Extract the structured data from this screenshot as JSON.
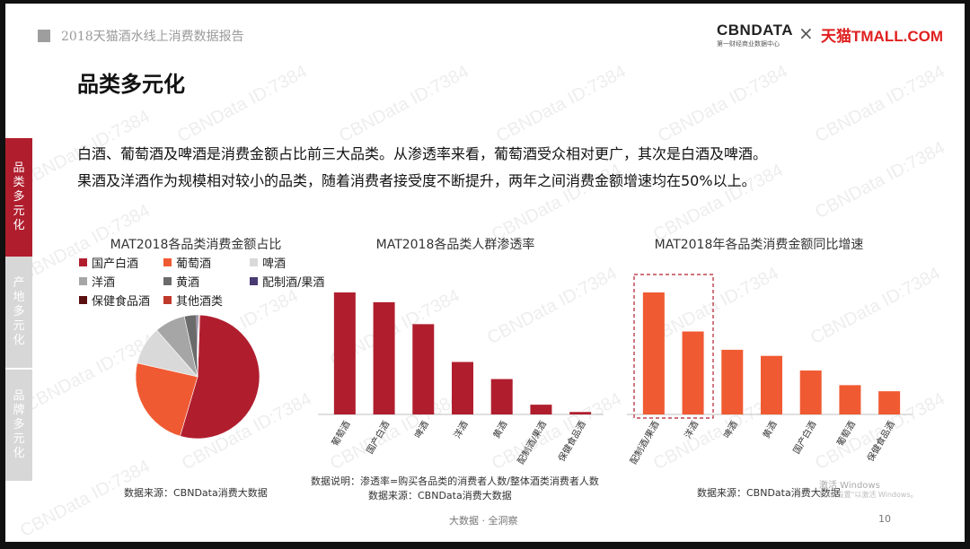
{
  "header": {
    "report_title": "2018天猫酒水线上消费数据报告",
    "logo_cbndata": "CBNDATA",
    "logo_cbndata_tagline": "第一财经商业数据中心",
    "logo_separator": "×",
    "logo_tmall": "天猫TMALL.COM"
  },
  "page_title": "品类多元化",
  "side_nav": [
    {
      "label": [
        "品",
        "类",
        "多",
        "元",
        "化"
      ],
      "active": true
    },
    {
      "label": [
        "产",
        "地",
        "多",
        "元",
        "化"
      ],
      "active": false
    },
    {
      "label": [
        "品",
        "牌",
        "多",
        "元",
        "化"
      ],
      "active": false
    }
  ],
  "intro": {
    "line1": "白酒、葡萄酒及啤酒是消费金额占比前三大品类。从渗透率来看，葡萄酒受众相对更广，其次是白酒及啤酒。",
    "line2": "果酒及洋酒作为规模相对较小的品类，随着消费者接受度不断提升，两年之间消费金额增速均在50%以上。"
  },
  "colors": {
    "brand_red": "#b01e2e",
    "accent_orange": "#f05a32",
    "side_inactive": "#d7d7d7"
  },
  "chart_data": [
    {
      "type": "pie",
      "title": "MAT2018各品类消费金额占比",
      "categories": [
        "国产白酒",
        "葡萄酒",
        "啤酒",
        "洋酒",
        "黄酒",
        "配制酒/果酒",
        "保健食品酒",
        "其他酒类"
      ],
      "values": [
        54,
        24,
        10,
        8,
        3.2,
        0.4,
        0.2,
        0.2
      ],
      "colors": [
        "#b01e2e",
        "#f05a32",
        "#d9d9d9",
        "#a6a6a6",
        "#6b6b6b",
        "#4a3a72",
        "#5a1010",
        "#c0392b"
      ],
      "source": "数据来源：CBNData消费大数据"
    },
    {
      "type": "bar",
      "title": "MAT2018各品类人群渗透率",
      "categories": [
        "葡萄酒",
        "国产白酒",
        "啤酒",
        "洋酒",
        "黄酒",
        "配制酒/果酒",
        "保健食品酒"
      ],
      "values": [
        100,
        92,
        74,
        43,
        29,
        8,
        2
      ],
      "ylim": [
        0,
        100
      ],
      "color": "#b01e2e",
      "note": "数据说明：渗透率=购买各品类的消费者人数/整体酒类消费者人数",
      "source": "数据来源：CBNData消费大数据"
    },
    {
      "type": "bar",
      "title": "MAT2018年各品类消费金额同比增速",
      "categories": [
        "配制酒/果酒",
        "洋酒",
        "啤酒",
        "黄酒",
        "国产白酒",
        "葡萄酒",
        "保健食品酒"
      ],
      "values": [
        100,
        68,
        53,
        48,
        36,
        24,
        19
      ],
      "ylim": [
        0,
        100
      ],
      "color": "#f05a32",
      "source": "数据来源：CBNData消费大数据"
    }
  ],
  "footer": {
    "center": "大数据 · 全洞察",
    "page": "10"
  },
  "watermark_text": "CBNData ID:7384",
  "windows_overlay": {
    "line1": "激活 Windows",
    "line2": "转到\"设置\"以激活 Windows。"
  }
}
